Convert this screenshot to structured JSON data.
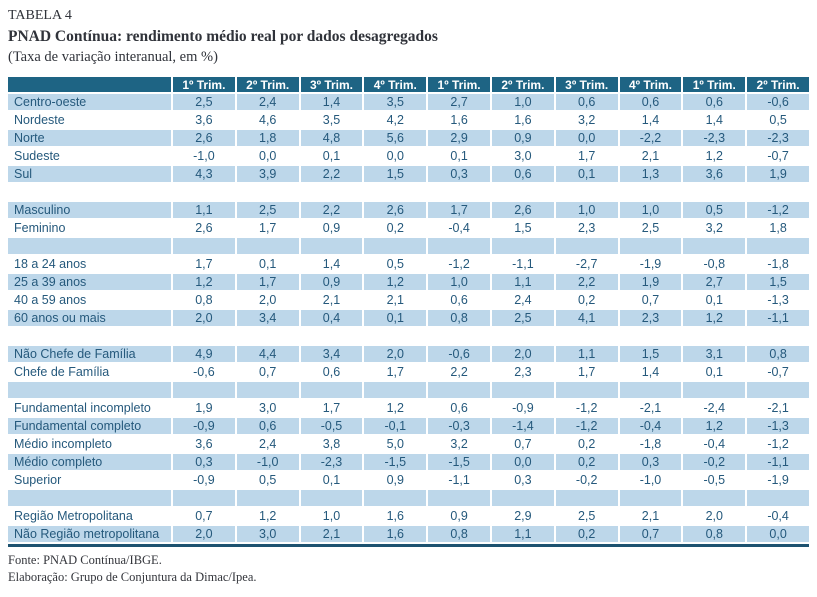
{
  "title": {
    "label": "TABELA 4",
    "heading": "PNAD Contínua: rendimento médio real por dados desagregados",
    "unit_note": "(Taxa de variação interanual, em %)"
  },
  "table": {
    "columns": [
      "1º Trim.",
      "2º Trim.",
      "3º Trim.",
      "4º Trim.",
      "1º Trim.",
      "2º Trim.",
      "3º Trim.",
      "4º Trim.",
      "1º Trim.",
      "2º Trim."
    ],
    "groups": [
      {
        "name": "regiao",
        "rows": [
          {
            "label": "Centro-oeste",
            "values": [
              "2,5",
              "2,4",
              "1,4",
              "3,5",
              "2,7",
              "1,0",
              "0,6",
              "0,6",
              "0,6",
              "-0,6"
            ]
          },
          {
            "label": "Nordeste",
            "values": [
              "3,6",
              "4,6",
              "3,5",
              "4,2",
              "1,6",
              "1,6",
              "3,2",
              "1,4",
              "1,4",
              "0,5"
            ]
          },
          {
            "label": "Norte",
            "values": [
              "2,6",
              "1,8",
              "4,8",
              "5,6",
              "2,9",
              "0,9",
              "0,0",
              "-2,2",
              "-2,3",
              "-2,3"
            ]
          },
          {
            "label": "Sudeste",
            "values": [
              "-1,0",
              "0,0",
              "0,1",
              "0,0",
              "0,1",
              "3,0",
              "1,7",
              "2,1",
              "1,2",
              "-0,7"
            ]
          },
          {
            "label": "Sul",
            "values": [
              "4,3",
              "3,9",
              "2,2",
              "1,5",
              "0,3",
              "0,6",
              "0,1",
              "1,3",
              "3,6",
              "1,9"
            ]
          }
        ]
      },
      {
        "name": "sexo",
        "rows": [
          {
            "label": "Masculino",
            "values": [
              "1,1",
              "2,5",
              "2,2",
              "2,6",
              "1,7",
              "2,6",
              "1,0",
              "1,0",
              "0,5",
              "-1,2"
            ]
          },
          {
            "label": "Feminino",
            "values": [
              "2,6",
              "1,7",
              "0,9",
              "0,2",
              "-0,4",
              "1,5",
              "2,3",
              "2,5",
              "3,2",
              "1,8"
            ]
          }
        ]
      },
      {
        "name": "idade",
        "rows": [
          {
            "label": "18 a 24 anos",
            "values": [
              "1,7",
              "0,1",
              "1,4",
              "0,5",
              "-1,2",
              "-1,1",
              "-2,7",
              "-1,9",
              "-0,8",
              "-1,8"
            ]
          },
          {
            "label": "25 a 39 anos",
            "values": [
              "1,2",
              "1,7",
              "0,9",
              "1,2",
              "1,0",
              "1,1",
              "2,2",
              "1,9",
              "2,7",
              "1,5"
            ]
          },
          {
            "label": "40 a 59 anos",
            "values": [
              "0,8",
              "2,0",
              "2,1",
              "2,1",
              "0,6",
              "2,4",
              "0,2",
              "0,7",
              "0,1",
              "-1,3"
            ]
          },
          {
            "label": "60 anos ou mais",
            "values": [
              "2,0",
              "3,4",
              "0,4",
              "0,1",
              "0,8",
              "2,5",
              "4,1",
              "2,3",
              "1,2",
              "-1,1"
            ]
          }
        ]
      },
      {
        "name": "chefia-familia",
        "rows": [
          {
            "label": "Não Chefe de Família",
            "values": [
              "4,9",
              "4,4",
              "3,4",
              "2,0",
              "-0,6",
              "2,0",
              "1,1",
              "1,5",
              "3,1",
              "0,8"
            ]
          },
          {
            "label": "Chefe de Família",
            "values": [
              "-0,6",
              "0,7",
              "0,6",
              "1,7",
              "2,2",
              "2,3",
              "1,7",
              "1,4",
              "0,1",
              "-0,7"
            ]
          }
        ]
      },
      {
        "name": "escolaridade",
        "rows": [
          {
            "label": "Fundamental incompleto",
            "values": [
              "1,9",
              "3,0",
              "1,7",
              "1,2",
              "0,6",
              "-0,9",
              "-1,2",
              "-2,1",
              "-2,4",
              "-2,1"
            ]
          },
          {
            "label": "Fundamental completo",
            "values": [
              "-0,9",
              "0,6",
              "-0,5",
              "-0,1",
              "-0,3",
              "-1,4",
              "-1,2",
              "-0,4",
              "1,2",
              "-1,3"
            ]
          },
          {
            "label": "Médio incompleto",
            "values": [
              "3,6",
              "2,4",
              "3,8",
              "5,0",
              "3,2",
              "0,7",
              "0,2",
              "-1,8",
              "-0,4",
              "-1,2"
            ]
          },
          {
            "label": "Médio completo",
            "values": [
              "0,3",
              "-1,0",
              "-2,3",
              "-1,5",
              "-1,5",
              "0,0",
              "0,2",
              "0,3",
              "-0,2",
              "-1,1"
            ]
          },
          {
            "label": "Superior",
            "values": [
              "-0,9",
              "0,5",
              "0,1",
              "0,9",
              "-1,1",
              "0,3",
              "-0,2",
              "-1,0",
              "-0,5",
              "-1,9"
            ]
          }
        ]
      },
      {
        "name": "area-metropolitana",
        "rows": [
          {
            "label": "Região Metropolitana",
            "values": [
              "0,7",
              "1,2",
              "1,0",
              "1,6",
              "0,9",
              "2,9",
              "2,5",
              "2,1",
              "2,0",
              "-0,4"
            ]
          },
          {
            "label": "Não Região metropolitana",
            "values": [
              "2,0",
              "3,0",
              "2,1",
              "1,6",
              "0,8",
              "1,1",
              "0,2",
              "0,7",
              "0,8",
              "0,0"
            ]
          }
        ]
      }
    ]
  },
  "footer": {
    "source": "Fonte: PNAD Contínua/IBGE.",
    "elaboration": "Elaboração: Grupo de Conjuntura da Dimac/Ipea."
  },
  "colors": {
    "header_bg": "#1e6484",
    "row_alt_bg": "#bdd7ea",
    "cell_text": "#25597c",
    "header_text": "#ffffff",
    "title_text": "#30333a",
    "bottom_rule": "#1d5270"
  }
}
